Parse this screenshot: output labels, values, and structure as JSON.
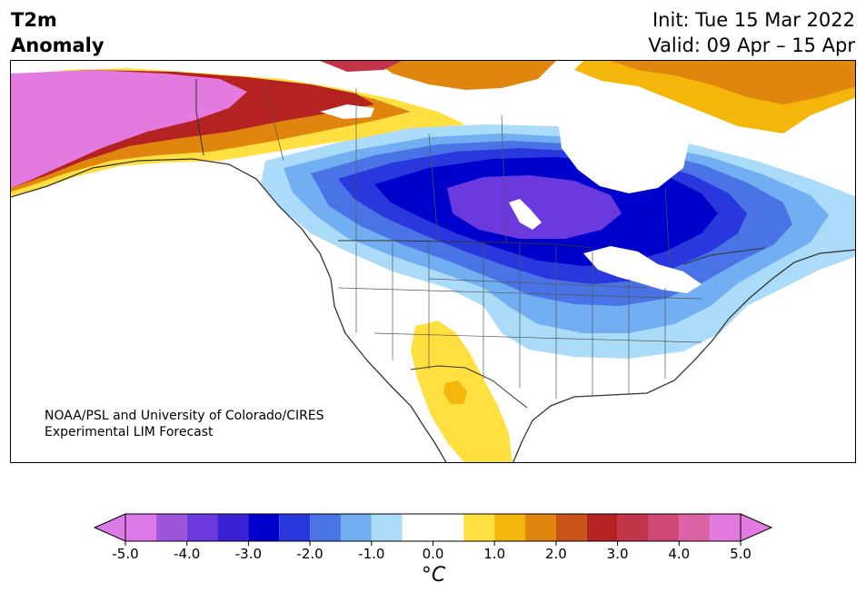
{
  "title": {
    "variable": "T2m\nAnomaly",
    "init": "Init: Tue 15 Mar 2022",
    "valid": "Valid: 09 Apr – 15 Apr"
  },
  "credit": "NOAA/PSL and University of Colorado/CIRES\nExperimental LIM Forecast",
  "colorbar": {
    "unit_label": "°C",
    "tick_labels": [
      "-5.0",
      "-4.0",
      "-3.0",
      "-2.0",
      "-1.0",
      "0.0",
      "1.0",
      "2.0",
      "3.0",
      "4.0",
      "5.0"
    ],
    "tick_values": [
      -5,
      -4,
      -3,
      -2,
      -1,
      0,
      1,
      2,
      3,
      4,
      5
    ],
    "range": [
      -5,
      5
    ],
    "extend": "both",
    "under_color": "#dc7ae8",
    "over_color": "#e37ae0",
    "bins": [
      {
        "from": -5.0,
        "to": -4.5,
        "color": "#dc78e8"
      },
      {
        "from": -4.5,
        "to": -4.0,
        "color": "#9d55dc"
      },
      {
        "from": -4.0,
        "to": -3.5,
        "color": "#6b3ade"
      },
      {
        "from": -3.5,
        "to": -3.0,
        "color": "#3a22d4"
      },
      {
        "from": -3.0,
        "to": -2.5,
        "color": "#0000cc"
      },
      {
        "from": -2.5,
        "to": -2.0,
        "color": "#2838dc"
      },
      {
        "from": -2.0,
        "to": -1.5,
        "color": "#4a74e6"
      },
      {
        "from": -1.5,
        "to": -1.0,
        "color": "#72aef2"
      },
      {
        "from": -1.0,
        "to": -0.5,
        "color": "#aadcfa"
      },
      {
        "from": -0.5,
        "to": 0.5,
        "color": "#ffffff"
      },
      {
        "from": 0.5,
        "to": 1.0,
        "color": "#ffe040"
      },
      {
        "from": 1.0,
        "to": 1.5,
        "color": "#f4b60a"
      },
      {
        "from": 1.5,
        "to": 2.0,
        "color": "#e0860e"
      },
      {
        "from": 2.0,
        "to": 2.5,
        "color": "#c85418"
      },
      {
        "from": 2.5,
        "to": 3.0,
        "color": "#b42222"
      },
      {
        "from": 3.0,
        "to": 3.5,
        "color": "#c23448"
      },
      {
        "from": 3.5,
        "to": 4.0,
        "color": "#d04878"
      },
      {
        "from": 4.0,
        "to": 4.5,
        "color": "#dc62a6"
      },
      {
        "from": 4.5,
        "to": 5.0,
        "color": "#e37ae0"
      }
    ]
  },
  "map": {
    "region": "North America",
    "anomaly_colors": {
      "strong_warm": "#e37ae0",
      "warm_red": "#b42222",
      "warm_orange": "#e0860e",
      "warm_gold": "#f4b60a",
      "warm_yellow": "#ffe040",
      "cool_light": "#aadcfa",
      "cool_mid": "#72aef2",
      "cool_blue": "#4a74e6",
      "cool_strong": "#2838dc",
      "cool_core": "#0000cc",
      "cool_purple": "#6b3ade"
    }
  }
}
